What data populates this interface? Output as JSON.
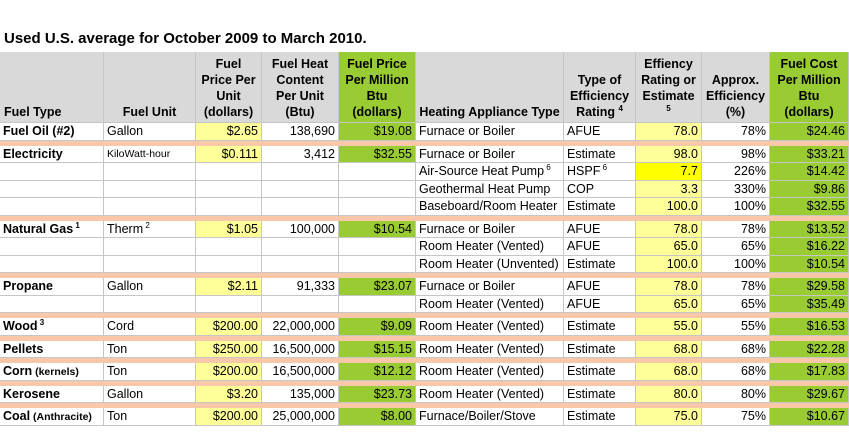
{
  "title": "Used U.S. average for October 2009 to March 2010.",
  "headers": {
    "fuel_type": "Fuel Type",
    "fuel_unit": "Fuel Unit",
    "fuel_price": "Fuel Price Per Unit (dollars)",
    "heat_content": "Fuel Heat Content Per Unit (Btu)",
    "price_per_mbtu": "Fuel Price Per Million Btu (dollars)",
    "appliance": "Heating Appliance Type",
    "eff_type": "Type of Efficiency Rating",
    "eff_type_sup": "4",
    "eff_rating": "Effiency Rating or Estimate",
    "eff_rating_sup": "5",
    "approx_eff": "Approx. Efficiency (%)",
    "cost_per_mbtu": "Fuel Cost Per Million Btu (dollars)"
  },
  "rows": [
    {
      "fuel": "Fuel Oil (#2)",
      "fuel_sup": "",
      "fuel_note": "",
      "unit": "Gallon",
      "unit_sup": "",
      "price": "$2.65",
      "heat": "138,690",
      "ppm": "$19.08",
      "appliance": "Furnace or Boiler",
      "app_sup": "",
      "etype": "AFUE",
      "etype_sup": "",
      "rating": "78.0",
      "approx": "78%",
      "cost": "$24.46"
    },
    {
      "fuel": "Electricity",
      "fuel_sup": "",
      "fuel_note": "",
      "unit": "KiloWatt-hour",
      "unit_sup": "",
      "price": "$0.111",
      "heat": "3,412",
      "ppm": "$32.55",
      "appliance": "Furnace or Boiler",
      "app_sup": "",
      "etype": "Estimate",
      "etype_sup": "",
      "rating": "98.0",
      "approx": "98%",
      "cost": "$33.21"
    },
    {
      "fuel": "",
      "fuel_sup": "",
      "fuel_note": "",
      "unit": "",
      "unit_sup": "",
      "price": "",
      "heat": "",
      "ppm": "",
      "appliance": "Air-Source Heat Pump",
      "app_sup": "6",
      "etype": "HSPF",
      "etype_sup": "6",
      "rating": "7.7",
      "approx": "226%",
      "cost": "$14.42"
    },
    {
      "fuel": "",
      "fuel_sup": "",
      "fuel_note": "",
      "unit": "",
      "unit_sup": "",
      "price": "",
      "heat": "",
      "ppm": "",
      "appliance": "Geothermal Heat Pump",
      "app_sup": "",
      "etype": "COP",
      "etype_sup": "",
      "rating": "3.3",
      "approx": "330%",
      "cost": "$9.86"
    },
    {
      "fuel": "",
      "fuel_sup": "",
      "fuel_note": "",
      "unit": "",
      "unit_sup": "",
      "price": "",
      "heat": "",
      "ppm": "",
      "appliance": "Baseboard/Room Heater",
      "app_sup": "",
      "etype": "Estimate",
      "etype_sup": "",
      "rating": "100.0",
      "approx": "100%",
      "cost": "$32.55"
    },
    {
      "fuel": "Natural Gas",
      "fuel_sup": "1",
      "fuel_note": "",
      "unit": "Therm",
      "unit_sup": "2",
      "price": "$1.05",
      "heat": "100,000",
      "ppm": "$10.54",
      "appliance": "Furnace or Boiler",
      "app_sup": "",
      "etype": "AFUE",
      "etype_sup": "",
      "rating": "78.0",
      "approx": "78%",
      "cost": "$13.52"
    },
    {
      "fuel": "",
      "fuel_sup": "",
      "fuel_note": "",
      "unit": "",
      "unit_sup": "",
      "price": "",
      "heat": "",
      "ppm": "",
      "appliance": "Room Heater (Vented)",
      "app_sup": "",
      "etype": "AFUE",
      "etype_sup": "",
      "rating": "65.0",
      "approx": "65%",
      "cost": "$16.22"
    },
    {
      "fuel": "",
      "fuel_sup": "",
      "fuel_note": "",
      "unit": "",
      "unit_sup": "",
      "price": "",
      "heat": "",
      "ppm": "",
      "appliance": "Room Heater (Unvented)",
      "app_sup": "",
      "etype": "Estimate",
      "etype_sup": "",
      "rating": "100.0",
      "approx": "100%",
      "cost": "$10.54"
    },
    {
      "fuel": "Propane",
      "fuel_sup": "",
      "fuel_note": "",
      "unit": "Gallon",
      "unit_sup": "",
      "price": "$2.11",
      "heat": "91,333",
      "ppm": "$23.07",
      "appliance": "Furnace or Boiler",
      "app_sup": "",
      "etype": "AFUE",
      "etype_sup": "",
      "rating": "78.0",
      "approx": "78%",
      "cost": "$29.58"
    },
    {
      "fuel": "",
      "fuel_sup": "",
      "fuel_note": "",
      "unit": "",
      "unit_sup": "",
      "price": "",
      "heat": "",
      "ppm": "",
      "appliance": "Room Heater (Vented)",
      "app_sup": "",
      "etype": "AFUE",
      "etype_sup": "",
      "rating": "65.0",
      "approx": "65%",
      "cost": "$35.49"
    },
    {
      "fuel": "Wood",
      "fuel_sup": "3",
      "fuel_note": "",
      "unit": "Cord",
      "unit_sup": "",
      "price": "$200.00",
      "heat": "22,000,000",
      "ppm": "$9.09",
      "appliance": "Room Heater (Vented)",
      "app_sup": "",
      "etype": "Estimate",
      "etype_sup": "",
      "rating": "55.0",
      "approx": "55%",
      "cost": "$16.53"
    },
    {
      "fuel": "Pellets",
      "fuel_sup": "",
      "fuel_note": "",
      "unit": "Ton",
      "unit_sup": "",
      "price": "$250.00",
      "heat": "16,500,000",
      "ppm": "$15.15",
      "appliance": "Room Heater (Vented)",
      "app_sup": "",
      "etype": "Estimate",
      "etype_sup": "",
      "rating": "68.0",
      "approx": "68%",
      "cost": "$22.28"
    },
    {
      "fuel": "Corn",
      "fuel_sup": "",
      "fuel_note": "(kernels)",
      "unit": "Ton",
      "unit_sup": "",
      "price": "$200.00",
      "heat": "16,500,000",
      "ppm": "$12.12",
      "appliance": "Room Heater (Vented)",
      "app_sup": "",
      "etype": "Estimate",
      "etype_sup": "",
      "rating": "68.0",
      "approx": "68%",
      "cost": "$17.83"
    },
    {
      "fuel": "Kerosene",
      "fuel_sup": "",
      "fuel_note": "",
      "unit": "Gallon",
      "unit_sup": "",
      "price": "$3.20",
      "heat": "135,000",
      "ppm": "$23.73",
      "appliance": "Room Heater (Vented)",
      "app_sup": "",
      "etype": "Estimate",
      "etype_sup": "",
      "rating": "80.0",
      "approx": "80%",
      "cost": "$29.67"
    },
    {
      "fuel": "Coal",
      "fuel_sup": "",
      "fuel_note": "(Anthracite)",
      "unit": "Ton",
      "unit_sup": "",
      "price": "$200.00",
      "heat": "25,000,000",
      "ppm": "$8.00",
      "appliance": "Furnace/Boiler/Stove",
      "app_sup": "",
      "etype": "Estimate",
      "etype_sup": "",
      "rating": "75.0",
      "approx": "75%",
      "cost": "$10.67"
    }
  ],
  "colors": {
    "yellow": "#ffff99",
    "green": "#99cc33",
    "highlight": "#ffff00",
    "separator": "#f9c8a8",
    "header": "#d9d9d9"
  }
}
